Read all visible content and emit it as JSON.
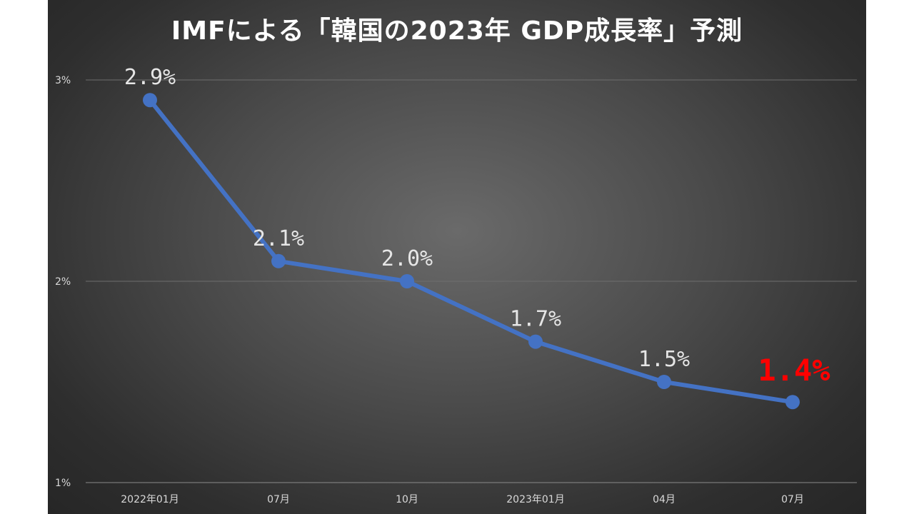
{
  "chart_data": {
    "type": "line",
    "title": "IMFによる「韓国の2023年 GDP成長率」予測",
    "xlabel": "",
    "ylabel": "",
    "categories": [
      "2022年01月",
      "07月",
      "10月",
      "2023年01月",
      "04月",
      "07月"
    ],
    "y_ticks": [
      "1%",
      "2%",
      "3%"
    ],
    "ylim": [
      1,
      3
    ],
    "grid": true,
    "legend": "none",
    "series": [
      {
        "values": [
          2.9,
          2.1,
          2.0,
          1.7,
          1.5,
          1.4
        ],
        "labels": [
          "2.9%",
          "2.1%",
          "2.0%",
          "1.7%",
          "1.5%",
          "1.4%"
        ],
        "color": "#4472c4"
      }
    ],
    "highlight_index": 5,
    "highlight_color": "#ff0000"
  }
}
